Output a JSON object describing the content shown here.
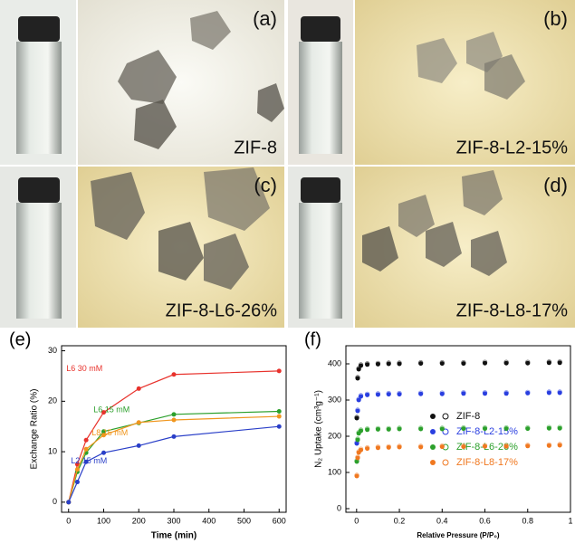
{
  "panels": [
    {
      "label": "(a)",
      "caption": "ZIF-8"
    },
    {
      "label": "(b)",
      "caption": "ZIF-8-L2-15%"
    },
    {
      "label": "(c)",
      "caption": "ZIF-8-L6-26%"
    },
    {
      "label": "(d)",
      "caption": "ZIF-8-L8-17%"
    }
  ],
  "chart_data": [
    {
      "type": "line",
      "label": "(e)",
      "x_label": "Time (min)",
      "y_label": "Exchange Ratio (%)",
      "x": [
        0,
        25,
        50,
        100,
        200,
        300,
        600
      ],
      "xlim": [
        -20,
        620
      ],
      "xticks": [
        0,
        100,
        200,
        300,
        400,
        500,
        600
      ],
      "ylim": [
        -2,
        31
      ],
      "yticks": [
        0,
        10,
        20,
        30
      ],
      "series": [
        {
          "name": "L6 30 mM",
          "color": "#e8322c",
          "values": [
            0,
            7.5,
            12.3,
            17.8,
            22.5,
            25.3,
            26
          ]
        },
        {
          "name": "L6 15 mM",
          "color": "#2ca02c",
          "values": [
            0,
            6,
            9.8,
            14,
            15.7,
            17.4,
            18
          ]
        },
        {
          "name": "L8 15 mM",
          "color": "#f0961e",
          "values": [
            0,
            6.5,
            10.5,
            13.3,
            15.8,
            16.3,
            17
          ]
        },
        {
          "name": "L2 15 mM",
          "color": "#2a3fc8",
          "values": [
            0,
            4,
            8,
            9.8,
            11.2,
            13,
            15
          ]
        }
      ]
    },
    {
      "type": "scatter",
      "label": "(f)",
      "x_label": "Relative Pressure (P/P₀)",
      "y_label": "N₂ Uptake (cm³g⁻¹)",
      "x": [
        0.001,
        0.005,
        0.01,
        0.02,
        0.05,
        0.1,
        0.15,
        0.2,
        0.3,
        0.4,
        0.5,
        0.6,
        0.7,
        0.8,
        0.9,
        0.95
      ],
      "xlim": [
        -0.05,
        1.0
      ],
      "xticks": [
        0.0,
        0.2,
        0.4,
        0.6,
        0.8,
        1.0
      ],
      "ylim": [
        -10,
        450
      ],
      "yticks": [
        0,
        100,
        200,
        300,
        400
      ],
      "series": [
        {
          "name": "ZIF-8",
          "color": "#111111",
          "values": [
            250,
            360,
            385,
            395,
            398,
            399,
            400,
            400,
            401,
            401,
            401,
            402,
            402,
            402,
            403,
            403
          ]
        },
        {
          "name": "ZIF-8-L2-15%",
          "color": "#2a3fe0",
          "values": [
            180,
            270,
            300,
            310,
            314,
            315,
            316,
            316,
            317,
            317,
            318,
            318,
            318,
            319,
            320,
            320
          ]
        },
        {
          "name": "ZIF-8-L6-26%",
          "color": "#2ca02c",
          "values": [
            130,
            190,
            208,
            215,
            218,
            219,
            219,
            220,
            220,
            220,
            221,
            221,
            221,
            221,
            222,
            222
          ]
        },
        {
          "name": "ZIF-8-L8-17%",
          "color": "#f07820",
          "values": [
            90,
            140,
            155,
            162,
            166,
            168,
            169,
            170,
            170,
            171,
            171,
            172,
            172,
            173,
            174,
            175
          ]
        }
      ]
    }
  ]
}
